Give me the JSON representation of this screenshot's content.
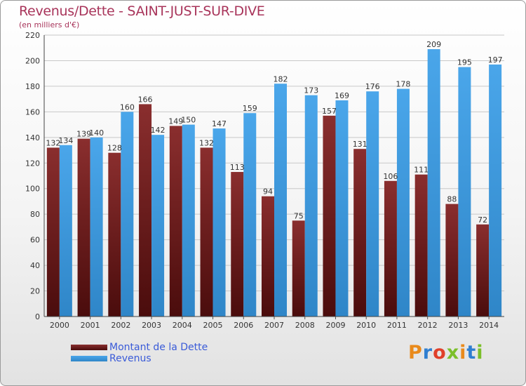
{
  "header": {
    "title": "Revenus/Dette - SAINT-JUST-SUR-DIVE",
    "subtitle": "(en milliers d'€)"
  },
  "legend": {
    "items": [
      {
        "label": "Montant de la Dette",
        "color": "#6b1a1a"
      },
      {
        "label": "Revenus",
        "color": "#3d9be0"
      }
    ]
  },
  "logo": {
    "text": "Proxiti"
  },
  "chart_data": {
    "type": "bar",
    "categories": [
      "2000",
      "2001",
      "2002",
      "2003",
      "2004",
      "2005",
      "2006",
      "2007",
      "2008",
      "2009",
      "2010",
      "2011",
      "2012",
      "2013",
      "2014"
    ],
    "series": [
      {
        "name": "Montant de la Dette",
        "values": [
          132,
          139,
          128,
          166,
          149,
          132,
          113,
          94,
          75,
          157,
          131,
          106,
          111,
          88,
          72
        ],
        "color": "#7a2424"
      },
      {
        "name": "Revenus",
        "values": [
          134,
          140,
          160,
          142,
          150,
          147,
          159,
          182,
          173,
          169,
          176,
          178,
          209,
          195,
          197
        ],
        "color": "#3d9be0"
      }
    ],
    "title": "Revenus/Dette - SAINT-JUST-SUR-DIVE",
    "ylabel": "(en milliers d'€)",
    "ylim": [
      0,
      220
    ],
    "yticks": [
      0,
      20,
      40,
      60,
      80,
      100,
      120,
      140,
      160,
      180,
      200,
      220
    ],
    "grid": true,
    "legend_position": "bottom-left"
  }
}
